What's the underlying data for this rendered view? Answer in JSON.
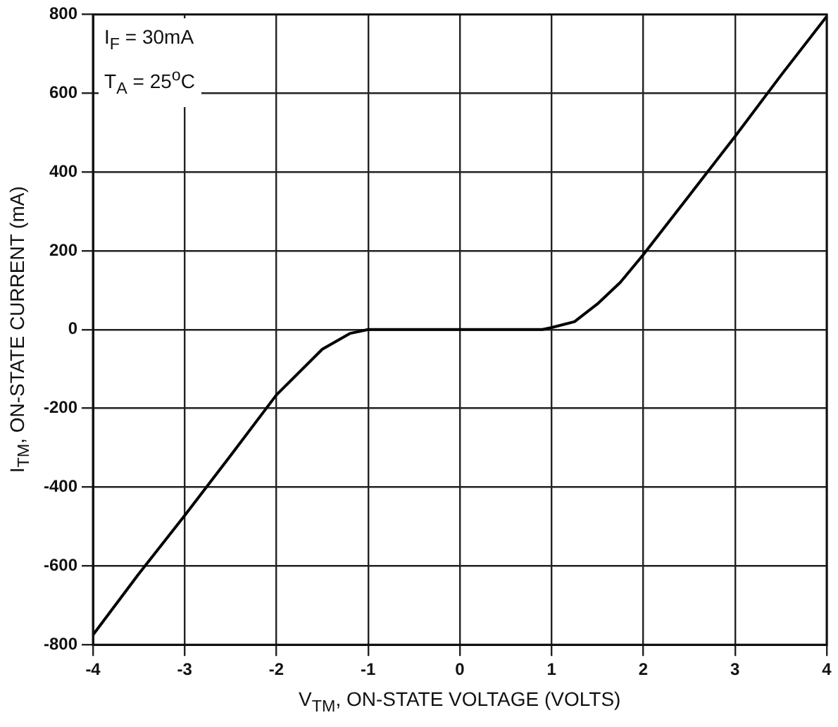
{
  "chart_data": {
    "type": "line",
    "xlabel": "V$_{TM}$, ON-STATE VOLTAGE (VOLTS)",
    "ylabel": "I$_{TM}$, ON-STATE CURRENT (mA)",
    "annotations": [
      "I$_{F}$ = 30mA",
      "T$_{A}$ = 25$^{o}$C"
    ],
    "x": [
      -4,
      -3.5,
      -3,
      -2.5,
      -2,
      -1.5,
      -1.2,
      -1,
      -0.5,
      0,
      0.5,
      0.9,
      1,
      1.25,
      1.5,
      1.75,
      2,
      2.5,
      3,
      3.5,
      4
    ],
    "series": [
      {
        "color": "#000000",
        "values": [
          -775,
          -620,
          -472,
          -320,
          -166,
          -50,
          -10,
          0,
          0,
          0,
          0,
          0,
          5,
          20,
          65,
          120,
          190,
          340,
          490,
          645,
          795
        ]
      }
    ],
    "xlim": [
      -4,
      4
    ],
    "xticks": [
      -4,
      -3,
      -2,
      -1,
      0,
      1,
      2,
      3,
      4
    ],
    "ylim": [
      -800,
      800
    ],
    "yticks": [
      -800,
      -600,
      -400,
      -200,
      0,
      200,
      400,
      600,
      800
    ],
    "grid": true,
    "legend": false,
    "marker": "none",
    "line_style": "solid"
  }
}
